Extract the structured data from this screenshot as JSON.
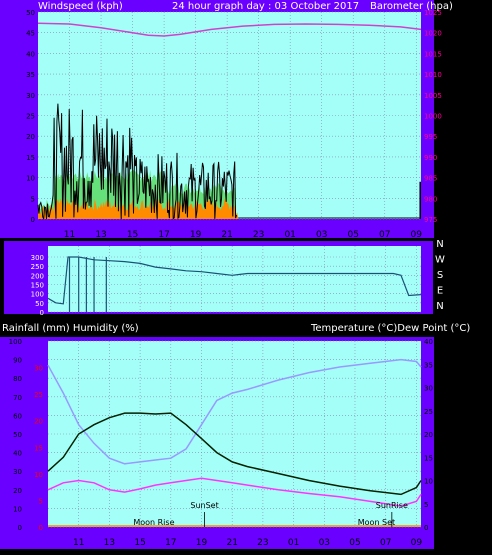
{
  "header": {
    "left_label": "Windspeed (kph)",
    "title": "24 hour graph day : 03 October 2017",
    "right_label": "Barometer (hpa)"
  },
  "bottom_header": {
    "left_label": "Rainfall (mm)  Humidity (%)",
    "right_label": "Temperature (°C)Dew Point (°C)"
  },
  "colors": {
    "frame": "#6a00ff",
    "plot_bg": "#a5fff9",
    "wind_speed": "#000000",
    "wind_gust_fill": "#66e07a",
    "wind_avg_fill": "#ff8c00",
    "barometer": "#cc44cc",
    "wind_dir": "#1a5276",
    "humidity": "#9999ff",
    "temperature": "#002200",
    "dewpoint": "#ff33ff",
    "right_ticks": "#ff0099",
    "left_ticks": "#ff0000"
  },
  "chart_data": [
    {
      "id": "wind_baro",
      "type": "line",
      "xlabel_ticks": [
        "11",
        "13",
        "15",
        "17",
        "19",
        "21",
        "23",
        "01",
        "03",
        "05",
        "07",
        "09"
      ],
      "xlim_hours": [
        9,
        33.3
      ],
      "y_left": {
        "label": "Windspeed (kph)",
        "ylim": [
          0,
          50
        ],
        "ticks": [
          "0",
          "5",
          "10",
          "15",
          "20",
          "25",
          "30",
          "35",
          "40",
          "45",
          "50"
        ]
      },
      "y_right": {
        "label": "Barometer (hpa)",
        "ylim": [
          975,
          1025
        ],
        "ticks": [
          "975",
          "980",
          "985",
          "990",
          "995",
          "1000",
          "1005",
          "1010",
          "1015",
          "1020",
          "1025"
        ]
      },
      "series": [
        {
          "name": "Barometer (hpa)",
          "x": [
            9,
            11,
            13,
            15,
            16,
            17,
            18,
            20,
            22,
            24,
            26,
            28,
            30,
            32,
            33.3
          ],
          "values": [
            1022.3,
            1022.1,
            1021.2,
            1020.0,
            1019.4,
            1019.2,
            1019.6,
            1020.8,
            1021.6,
            1022.0,
            1022.1,
            1022.0,
            1021.8,
            1021.4,
            1020.8
          ]
        }
      ],
      "wind_speed_series_note": "Windspeed (kph)",
      "windspeed_max_approx": 30,
      "grid": true
    },
    {
      "id": "wind_dir",
      "type": "line",
      "y_left_ticks": [
        "0",
        "50",
        "100",
        "150",
        "200",
        "250",
        "300"
      ],
      "ylim": [
        0,
        360
      ],
      "y_right_labels": [
        "N",
        "W",
        "S",
        "E",
        "N"
      ],
      "series": [
        {
          "name": "Wind direction",
          "x": [
            9,
            9.5,
            10.0,
            10.3,
            11,
            12,
            13,
            14,
            15,
            16,
            17,
            18,
            19,
            20,
            21,
            21.5,
            22,
            24,
            26,
            28,
            30,
            31.5,
            32,
            32.5,
            33.3
          ],
          "values": [
            75,
            50,
            45,
            300,
            300,
            285,
            280,
            275,
            265,
            245,
            235,
            225,
            220,
            210,
            200,
            205,
            210,
            210,
            210,
            210,
            210,
            210,
            200,
            90,
            95
          ]
        }
      ],
      "grid": true
    },
    {
      "id": "temp_hum",
      "type": "line",
      "y_left_outer": {
        "label": "Humidity (%)",
        "ylim": [
          0,
          100
        ],
        "ticks": [
          "0",
          "10",
          "20",
          "30",
          "40",
          "50",
          "60",
          "70",
          "80",
          "90",
          "100"
        ]
      },
      "y_left_inner": {
        "label": "Rainfall (mm)",
        "ticks": [
          "0",
          "5",
          "10",
          "15",
          "20",
          "25",
          "30"
        ]
      },
      "y_right": {
        "label": "Temperature (°C)",
        "ylim": [
          0,
          40
        ],
        "ticks": [
          "0",
          "5",
          "10",
          "15",
          "20",
          "25",
          "30",
          "35",
          "40"
        ]
      },
      "annotations": [
        "SunSet",
        "Moon Rise",
        "SunRise",
        "Moon Set"
      ],
      "series": [
        {
          "name": "Humidity (%)",
          "x": [
            9,
            10,
            11,
            12,
            13,
            14,
            15,
            16,
            17,
            18,
            19,
            20,
            21,
            22,
            24,
            26,
            28,
            30,
            32,
            33,
            33.3
          ],
          "values": [
            87,
            72,
            55,
            45,
            37,
            34,
            35,
            36,
            37,
            42,
            55,
            68,
            72,
            74,
            79,
            83,
            86,
            88,
            90,
            89,
            86
          ]
        },
        {
          "name": "Temperature (°C)",
          "x": [
            9,
            10,
            11,
            12,
            13,
            14,
            15,
            16,
            17,
            18,
            19,
            20,
            21,
            22,
            24,
            26,
            28,
            30,
            32,
            33,
            33.3
          ],
          "values": [
            12,
            15,
            20,
            22,
            23.5,
            24.5,
            24.5,
            24.3,
            24.5,
            22,
            19,
            16,
            14,
            13,
            11.5,
            10,
            8.8,
            7.8,
            7.0,
            8.5,
            10
          ]
        },
        {
          "name": "Dew Point (°C)",
          "x": [
            9,
            10,
            11,
            12,
            13,
            14,
            15,
            16,
            17,
            18,
            19,
            20,
            21,
            22,
            24,
            26,
            28,
            30,
            32,
            33,
            33.3
          ],
          "values": [
            8,
            9.5,
            10,
            9.5,
            8,
            7.5,
            8.2,
            9,
            9.5,
            10,
            10.5,
            10,
            9.5,
            9,
            8,
            7.2,
            6.5,
            5.5,
            4.5,
            5.5,
            7
          ]
        }
      ],
      "grid": true
    }
  ]
}
